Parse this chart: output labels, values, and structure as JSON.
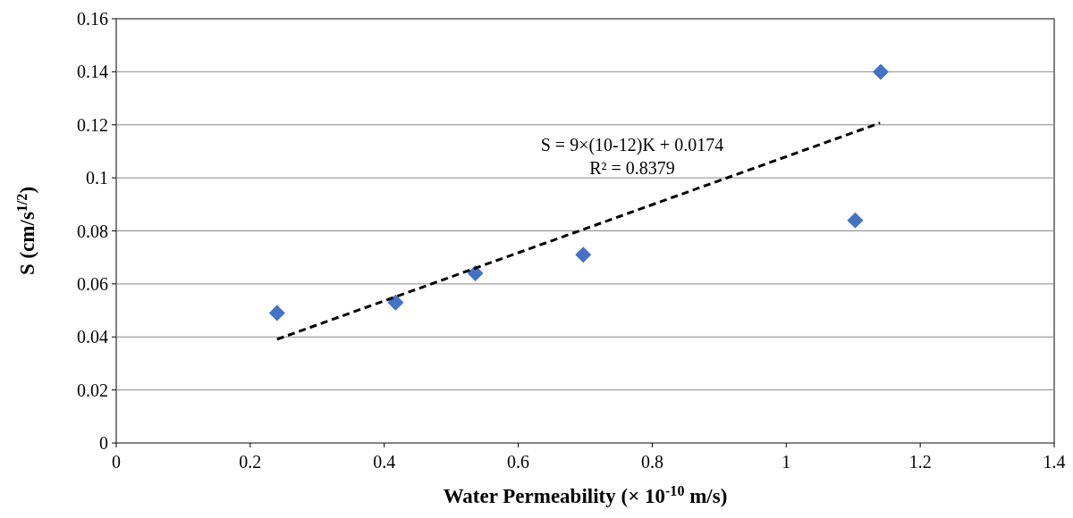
{
  "chart_data": {
    "type": "scatter",
    "xlabel": "Water Permeability (× 10$^{-10}$ m/s)",
    "ylabel": "S (cm/s$^{1/2}$)",
    "xlim": [
      0,
      1.4
    ],
    "xticks": [
      0,
      0.2,
      0.4,
      0.6,
      0.8,
      1,
      1.2,
      1.4
    ],
    "ylim": [
      0,
      0.16
    ],
    "yticks": [
      0,
      0.02,
      0.04,
      0.06,
      0.08,
      0.1,
      0.12,
      0.14,
      0.16
    ],
    "grid": "y",
    "marker": "diamond",
    "series": [
      {
        "color": "#4472c4",
        "x": [
          0.24,
          0.417,
          0.536,
          0.697,
          1.103,
          1.141
        ],
        "values": [
          0.049,
          0.053,
          0.064,
          0.071,
          0.084,
          0.14
        ]
      },
      {
        "type": "line",
        "color": "#000000",
        "line_style": "dashed",
        "marker": "none",
        "x": [
          0.24,
          1.14
        ],
        "values": [
          0.0391,
          0.1207
        ]
      }
    ],
    "annotations": [
      "S = 9×(10-12)K + 0.0174",
      "R² = 0.8379"
    ]
  }
}
